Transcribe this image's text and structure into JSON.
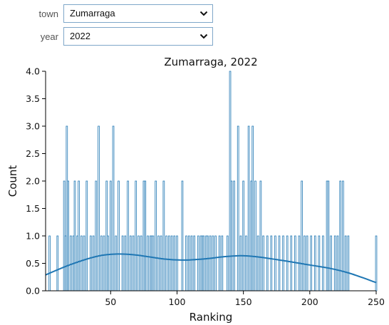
{
  "controls": {
    "town": {
      "label": "town",
      "value": "Zumarraga"
    },
    "year": {
      "label": "year",
      "value": "2022"
    }
  },
  "colors": {
    "bar_edge": "#1f77b4",
    "kde": "#1f77b4",
    "select_border": "#7fa7c9"
  },
  "icons": {
    "dropdown": "chevron-down-icon"
  },
  "chart_data": {
    "type": "bar",
    "title": "Zumarraga, 2022",
    "xlabel": "Ranking",
    "ylabel": "Count",
    "xlim": [
      1,
      250
    ],
    "ylim": [
      0,
      4
    ],
    "x_ticks": [
      50,
      100,
      150,
      200,
      250
    ],
    "y_ticks": [
      0.0,
      0.5,
      1.0,
      1.5,
      2.0,
      2.5,
      3.0,
      3.5,
      4.0
    ],
    "y_tick_labels": [
      "0.0",
      "0.5",
      "1.0",
      "1.5",
      "2.0",
      "2.5",
      "3.0",
      "3.5",
      "4.0"
    ],
    "grid": false,
    "histogram": {
      "bin_width": 1,
      "bins": [
        {
          "x": 4,
          "count": 1
        },
        {
          "x": 10,
          "count": 1
        },
        {
          "x": 15,
          "count": 2
        },
        {
          "x": 16,
          "count": 1
        },
        {
          "x": 17,
          "count": 3
        },
        {
          "x": 18,
          "count": 2
        },
        {
          "x": 20,
          "count": 1
        },
        {
          "x": 22,
          "count": 1
        },
        {
          "x": 23,
          "count": 2
        },
        {
          "x": 25,
          "count": 1
        },
        {
          "x": 26,
          "count": 2
        },
        {
          "x": 28,
          "count": 1
        },
        {
          "x": 30,
          "count": 1
        },
        {
          "x": 32,
          "count": 2
        },
        {
          "x": 35,
          "count": 1
        },
        {
          "x": 37,
          "count": 1
        },
        {
          "x": 39,
          "count": 2
        },
        {
          "x": 41,
          "count": 3
        },
        {
          "x": 43,
          "count": 1
        },
        {
          "x": 45,
          "count": 1
        },
        {
          "x": 47,
          "count": 2
        },
        {
          "x": 48,
          "count": 1
        },
        {
          "x": 50,
          "count": 2
        },
        {
          "x": 52,
          "count": 3
        },
        {
          "x": 54,
          "count": 1
        },
        {
          "x": 56,
          "count": 2
        },
        {
          "x": 59,
          "count": 1
        },
        {
          "x": 61,
          "count": 1
        },
        {
          "x": 63,
          "count": 2
        },
        {
          "x": 65,
          "count": 1
        },
        {
          "x": 67,
          "count": 1
        },
        {
          "x": 69,
          "count": 2
        },
        {
          "x": 71,
          "count": 1
        },
        {
          "x": 73,
          "count": 1
        },
        {
          "x": 75,
          "count": 2
        },
        {
          "x": 76,
          "count": 2
        },
        {
          "x": 78,
          "count": 1
        },
        {
          "x": 80,
          "count": 1
        },
        {
          "x": 81,
          "count": 1
        },
        {
          "x": 82,
          "count": 1
        },
        {
          "x": 84,
          "count": 2
        },
        {
          "x": 86,
          "count": 1
        },
        {
          "x": 88,
          "count": 1
        },
        {
          "x": 90,
          "count": 2
        },
        {
          "x": 92,
          "count": 1
        },
        {
          "x": 94,
          "count": 1
        },
        {
          "x": 96,
          "count": 1
        },
        {
          "x": 98,
          "count": 1
        },
        {
          "x": 100,
          "count": 1
        },
        {
          "x": 104,
          "count": 2
        },
        {
          "x": 107,
          "count": 1
        },
        {
          "x": 109,
          "count": 1
        },
        {
          "x": 111,
          "count": 1
        },
        {
          "x": 113,
          "count": 1
        },
        {
          "x": 116,
          "count": 1
        },
        {
          "x": 118,
          "count": 1
        },
        {
          "x": 119,
          "count": 1
        },
        {
          "x": 120,
          "count": 1
        },
        {
          "x": 122,
          "count": 1
        },
        {
          "x": 123,
          "count": 1
        },
        {
          "x": 125,
          "count": 1
        },
        {
          "x": 127,
          "count": 1
        },
        {
          "x": 129,
          "count": 1
        },
        {
          "x": 132,
          "count": 1
        },
        {
          "x": 134,
          "count": 1
        },
        {
          "x": 138,
          "count": 1
        },
        {
          "x": 140,
          "count": 4
        },
        {
          "x": 141,
          "count": 2
        },
        {
          "x": 143,
          "count": 2
        },
        {
          "x": 146,
          "count": 3
        },
        {
          "x": 148,
          "count": 1
        },
        {
          "x": 150,
          "count": 2
        },
        {
          "x": 152,
          "count": 1
        },
        {
          "x": 154,
          "count": 3
        },
        {
          "x": 156,
          "count": 2
        },
        {
          "x": 157,
          "count": 3
        },
        {
          "x": 159,
          "count": 2
        },
        {
          "x": 161,
          "count": 1
        },
        {
          "x": 163,
          "count": 2
        },
        {
          "x": 165,
          "count": 1
        },
        {
          "x": 168,
          "count": 1
        },
        {
          "x": 171,
          "count": 1
        },
        {
          "x": 174,
          "count": 1
        },
        {
          "x": 177,
          "count": 1
        },
        {
          "x": 180,
          "count": 1
        },
        {
          "x": 183,
          "count": 1
        },
        {
          "x": 186,
          "count": 1
        },
        {
          "x": 189,
          "count": 1
        },
        {
          "x": 192,
          "count": 1
        },
        {
          "x": 194,
          "count": 2
        },
        {
          "x": 196,
          "count": 1
        },
        {
          "x": 198,
          "count": 1
        },
        {
          "x": 201,
          "count": 1
        },
        {
          "x": 204,
          "count": 1
        },
        {
          "x": 207,
          "count": 1
        },
        {
          "x": 210,
          "count": 1
        },
        {
          "x": 213,
          "count": 2
        },
        {
          "x": 214,
          "count": 2
        },
        {
          "x": 216,
          "count": 1
        },
        {
          "x": 219,
          "count": 1
        },
        {
          "x": 221,
          "count": 1
        },
        {
          "x": 223,
          "count": 2
        },
        {
          "x": 225,
          "count": 2
        },
        {
          "x": 227,
          "count": 1
        },
        {
          "x": 229,
          "count": 1
        },
        {
          "x": 250,
          "count": 1
        }
      ]
    },
    "kde_series": {
      "x": [
        1,
        20,
        40,
        55,
        70,
        90,
        105,
        120,
        135,
        148,
        160,
        180,
        200,
        215,
        230,
        250
      ],
      "y": [
        0.29,
        0.48,
        0.63,
        0.67,
        0.65,
        0.58,
        0.56,
        0.58,
        0.62,
        0.64,
        0.62,
        0.55,
        0.47,
        0.41,
        0.32,
        0.15
      ]
    }
  }
}
